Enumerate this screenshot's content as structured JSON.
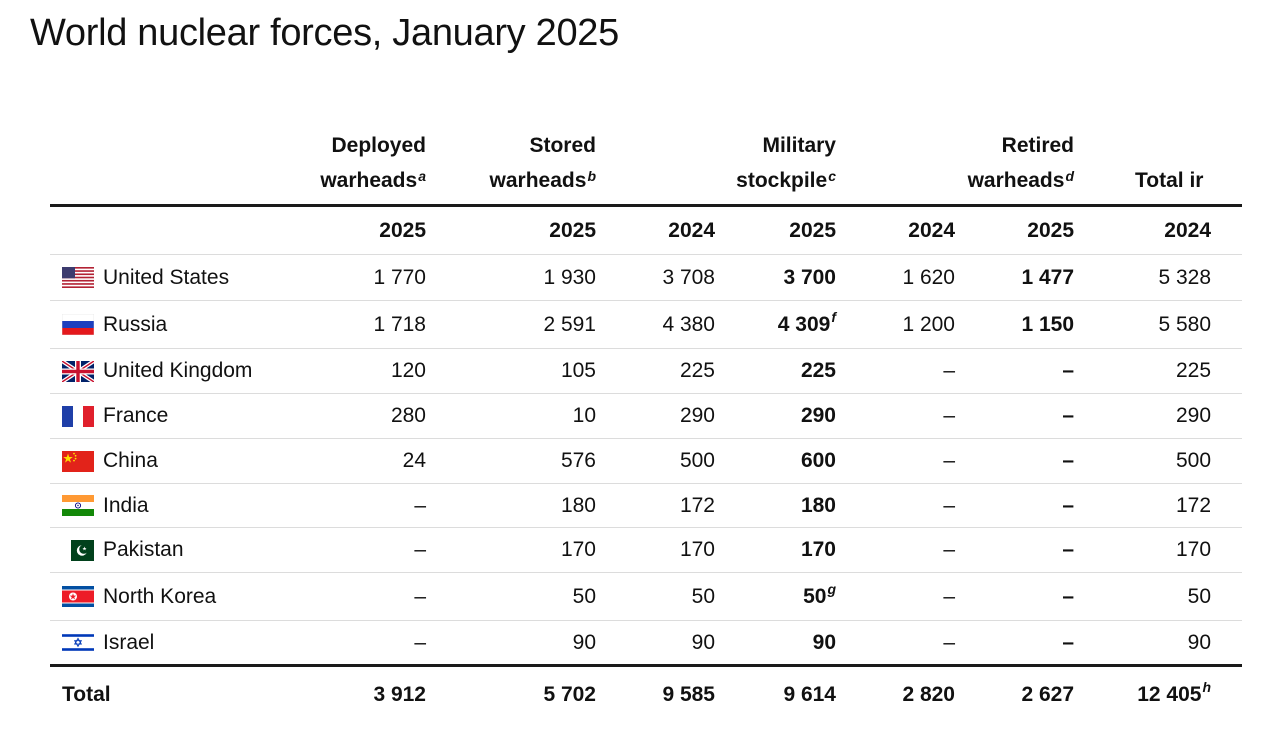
{
  "title": "World nuclear forces, January 2025",
  "columns": {
    "deployed": {
      "line1": "Deployed",
      "line2": "warheads",
      "note": "a"
    },
    "stored": {
      "line1": "Stored",
      "line2": "warheads",
      "note": "b"
    },
    "military": {
      "line1": "Military",
      "line2": "stockpile",
      "note": "c"
    },
    "retired": {
      "line1": "Retired",
      "line2": "warheads",
      "note": "d"
    },
    "total": {
      "line1": "",
      "line2": "Total ir",
      "note": ""
    }
  },
  "years": {
    "deployed": "2025",
    "stored": "2025",
    "military_2024": "2024",
    "military_2025": "2025",
    "retired_2024": "2024",
    "retired_2025": "2025",
    "total_2024": "2024"
  },
  "rows": [
    {
      "flag": "us-flag-icon",
      "country": "United States",
      "deployed": "1 770",
      "stored": "1 930",
      "military_2024": "3 708",
      "military_2025": "3 700",
      "military_2025_note": "",
      "retired_2024": "1 620",
      "retired_2025": "1 477",
      "total_2024": "5 328"
    },
    {
      "flag": "russia-flag-icon",
      "country": "Russia",
      "deployed": "1 718",
      "stored": "2 591",
      "military_2024": "4 380",
      "military_2025": "4 309",
      "military_2025_note": "f",
      "retired_2024": "1 200",
      "retired_2025": "1 150",
      "total_2024": "5 580"
    },
    {
      "flag": "uk-flag-icon",
      "country": "United Kingdom",
      "deployed": "120",
      "stored": "105",
      "military_2024": "225",
      "military_2025": "225",
      "military_2025_note": "",
      "retired_2024": "–",
      "retired_2025": "–",
      "total_2024": "225"
    },
    {
      "flag": "france-flag-icon",
      "country": "France",
      "deployed": "280",
      "stored": "10",
      "military_2024": "290",
      "military_2025": "290",
      "military_2025_note": "",
      "retired_2024": "–",
      "retired_2025": "–",
      "total_2024": "290"
    },
    {
      "flag": "china-flag-icon",
      "country": "China",
      "deployed": "24",
      "stored": "576",
      "military_2024": "500",
      "military_2025": "600",
      "military_2025_note": "",
      "retired_2024": "–",
      "retired_2025": "–",
      "total_2024": "500"
    },
    {
      "flag": "india-flag-icon",
      "country": "India",
      "deployed": "–",
      "stored": "180",
      "military_2024": "172",
      "military_2025": "180",
      "military_2025_note": "",
      "retired_2024": "–",
      "retired_2025": "–",
      "total_2024": "172"
    },
    {
      "flag": "pakistan-flag-icon",
      "country": "Pakistan",
      "deployed": "–",
      "stored": "170",
      "military_2024": "170",
      "military_2025": "170",
      "military_2025_note": "",
      "retired_2024": "–",
      "retired_2025": "–",
      "total_2024": "170"
    },
    {
      "flag": "north-korea-flag-icon",
      "country": "North Korea",
      "deployed": "–",
      "stored": "50",
      "military_2024": "50",
      "military_2025": "50",
      "military_2025_note": "g",
      "retired_2024": "–",
      "retired_2025": "–",
      "total_2024": "50"
    },
    {
      "flag": "israel-flag-icon",
      "country": "Israel",
      "deployed": "–",
      "stored": "90",
      "military_2024": "90",
      "military_2025": "90",
      "military_2025_note": "",
      "retired_2024": "–",
      "retired_2025": "–",
      "total_2024": "90"
    }
  ],
  "total": {
    "label": "Total",
    "deployed": "3 912",
    "stored": "5 702",
    "military_2024": "9 585",
    "military_2025": "9 614",
    "retired_2024": "2 820",
    "retired_2025": "2 627",
    "total_2024": "12 405",
    "total_2024_note": "h"
  }
}
